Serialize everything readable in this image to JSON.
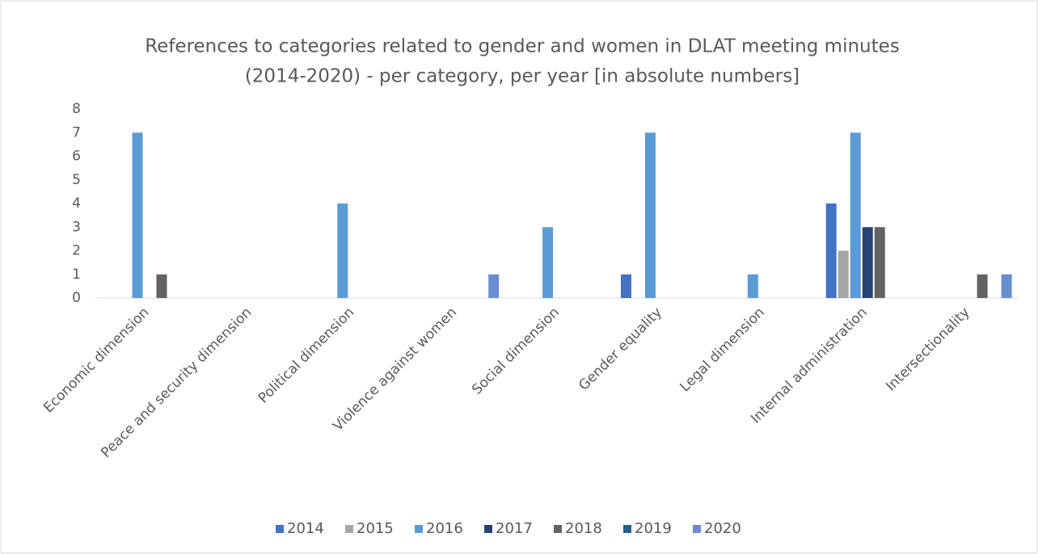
{
  "chart_data": {
    "type": "bar",
    "title": [
      "References to categories related to gender and women in DLAT meeting minutes",
      "(2014-2020) - per category, per year [in absolute numbers]"
    ],
    "categories": [
      "Economic dimension",
      "Peace and security dimension",
      "Political dimension",
      "Violence against women",
      "Social dimension",
      "Gender equality",
      "Legal dimension",
      "Internal administration",
      "Intersectionality"
    ],
    "series": [
      {
        "name": "2014",
        "color": "#4472c4",
        "values": [
          0,
          0,
          0,
          0,
          0,
          1,
          0,
          4,
          0
        ]
      },
      {
        "name": "2015",
        "color": "#a5a5a5",
        "values": [
          0,
          0,
          0,
          0,
          0,
          0,
          0,
          2,
          0
        ]
      },
      {
        "name": "2016",
        "color": "#5b9bd5",
        "values": [
          7,
          0,
          4,
          0,
          3,
          7,
          1,
          7,
          0
        ]
      },
      {
        "name": "2017",
        "color": "#264478",
        "values": [
          0,
          0,
          0,
          0,
          0,
          0,
          0,
          3,
          0
        ]
      },
      {
        "name": "2018",
        "color": "#636363",
        "values": [
          1,
          0,
          0,
          0,
          0,
          0,
          0,
          3,
          1
        ]
      },
      {
        "name": "2019",
        "color": "#255e91",
        "values": [
          0,
          0,
          0,
          0,
          0,
          0,
          0,
          0,
          0
        ]
      },
      {
        "name": "2020",
        "color": "#698ed0",
        "values": [
          0,
          0,
          0,
          1,
          0,
          0,
          0,
          0,
          1
        ]
      }
    ],
    "ylim": [
      0,
      8
    ],
    "yticks": [
      0,
      1,
      2,
      3,
      4,
      5,
      6,
      7,
      8
    ],
    "grid": false,
    "legend": "bottom"
  }
}
